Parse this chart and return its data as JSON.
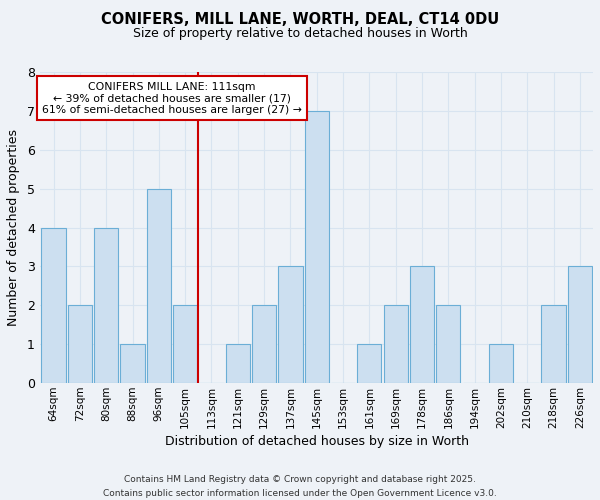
{
  "title": "CONIFERS, MILL LANE, WORTH, DEAL, CT14 0DU",
  "subtitle": "Size of property relative to detached houses in Worth",
  "xlabel": "Distribution of detached houses by size in Worth",
  "ylabel": "Number of detached properties",
  "categories": [
    "64sqm",
    "72sqm",
    "80sqm",
    "88sqm",
    "96sqm",
    "105sqm",
    "113sqm",
    "121sqm",
    "129sqm",
    "137sqm",
    "145sqm",
    "153sqm",
    "161sqm",
    "169sqm",
    "178sqm",
    "186sqm",
    "194sqm",
    "202sqm",
    "210sqm",
    "218sqm",
    "226sqm"
  ],
  "values": [
    4,
    2,
    4,
    1,
    5,
    2,
    0,
    1,
    2,
    3,
    7,
    0,
    1,
    2,
    3,
    2,
    0,
    1,
    0,
    2,
    3
  ],
  "bar_color": "#ccdff0",
  "bar_edge_color": "#6baed6",
  "highlight_line_index": 6,
  "highlight_line_color": "#cc0000",
  "ylim": [
    0,
    8
  ],
  "yticks": [
    0,
    1,
    2,
    3,
    4,
    5,
    6,
    7,
    8
  ],
  "annotation_text": "CONIFERS MILL LANE: 111sqm\n← 39% of detached houses are smaller (17)\n61% of semi-detached houses are larger (27) →",
  "annotation_box_color": "#ffffff",
  "annotation_box_edge": "#cc0000",
  "bg_color": "#eef2f7",
  "grid_color": "#d8e4f0",
  "footer_line1": "Contains HM Land Registry data © Crown copyright and database right 2025.",
  "footer_line2": "Contains public sector information licensed under the Open Government Licence v3.0."
}
